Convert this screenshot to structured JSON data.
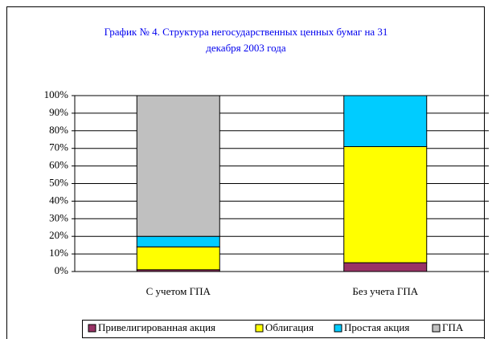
{
  "chart_data": {
    "type": "stacked_bar",
    "title": [
      "График № 4. Структура негосударственных ценных бумаг на 31",
      "декабря 2003 года"
    ],
    "categories": [
      "С учетом ГПА",
      "Без учета ГПА"
    ],
    "series": [
      {
        "name": "Привелигированная акция",
        "color": "#993366",
        "values": [
          1,
          5
        ]
      },
      {
        "name": "Облигация",
        "color": "#ffff00",
        "values": [
          13,
          66
        ]
      },
      {
        "name": "Простая акция",
        "color": "#00ccff",
        "values": [
          6,
          29
        ]
      },
      {
        "name": "ГПА",
        "color": "#c0c0c0",
        "values": [
          80,
          0
        ]
      }
    ],
    "ylim": [
      0,
      100
    ],
    "yticks": [
      {
        "value": 0,
        "label": "0%"
      },
      {
        "value": 10,
        "label": "10%"
      },
      {
        "value": 20,
        "label": "20%"
      },
      {
        "value": 30,
        "label": "30%"
      },
      {
        "value": 40,
        "label": "40%"
      },
      {
        "value": 50,
        "label": "50%"
      },
      {
        "value": 60,
        "label": "60%"
      },
      {
        "value": 70,
        "label": "70%"
      },
      {
        "value": 80,
        "label": "80%"
      },
      {
        "value": 90,
        "label": "90%"
      },
      {
        "value": 100,
        "label": "100%"
      }
    ],
    "grid": true,
    "legend": "bottom"
  }
}
